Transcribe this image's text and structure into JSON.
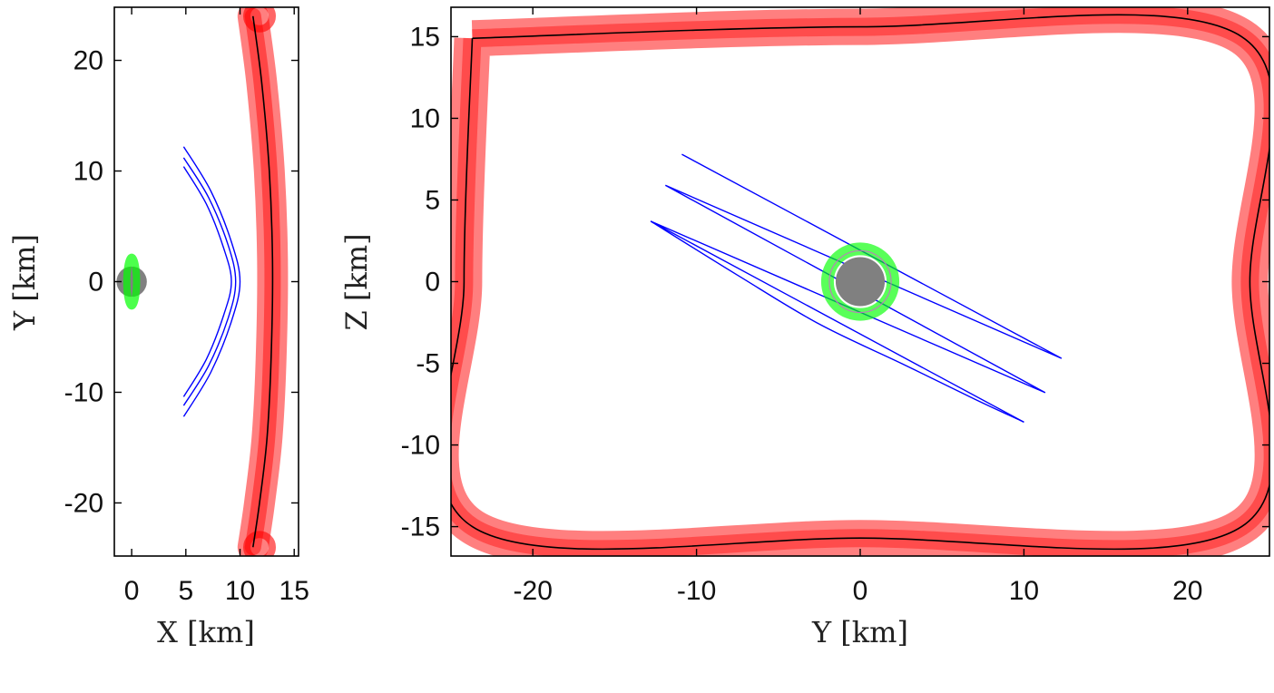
{
  "colors": {
    "boundary": "#ff0000",
    "boundary_core": "#000000",
    "trajectory": "#0000ff",
    "sphere": "#00ff00",
    "body": "#808080"
  },
  "chart_data": [
    {
      "type": "line",
      "name": "xy-view",
      "xlabel": "X [km]",
      "ylabel": "Y [km]",
      "xlim": [
        -1.6,
        15.4
      ],
      "ylim": [
        -24.8,
        24.8
      ],
      "xticks": [
        0,
        5,
        10,
        15
      ],
      "yticks": [
        -20,
        -10,
        0,
        10,
        20
      ],
      "xtick_labels": [
        "0",
        "5",
        "10",
        "15"
      ],
      "ytick_labels": [
        "-20",
        "-10",
        "0",
        "10",
        "20"
      ],
      "grid": false,
      "legend": "none",
      "boundary_curve": [
        [
          11.2,
          24.0
        ],
        [
          12.0,
          18.0
        ],
        [
          12.7,
          10.0
        ],
        [
          13.0,
          2.0
        ],
        [
          12.9,
          -6.0
        ],
        [
          12.5,
          -14.0
        ],
        [
          11.8,
          -20.0
        ],
        [
          11.2,
          -24.0
        ]
      ],
      "boundary_end_markers": [
        [
          11.8,
          24.0
        ],
        [
          11.8,
          -24.0
        ]
      ],
      "trajectory_arcs": [
        [
          [
            4.8,
            12.2
          ],
          [
            7.3,
            8.2
          ],
          [
            9.2,
            3.6
          ],
          [
            10.0,
            0.0
          ],
          [
            9.2,
            -3.6
          ],
          [
            7.3,
            -8.2
          ],
          [
            4.8,
            -12.2
          ]
        ],
        [
          [
            4.8,
            11.2
          ],
          [
            7.1,
            7.6
          ],
          [
            8.9,
            3.3
          ],
          [
            9.6,
            0.0
          ],
          [
            8.9,
            -3.3
          ],
          [
            7.1,
            -7.6
          ],
          [
            4.8,
            -11.2
          ]
        ],
        [
          [
            4.8,
            10.4
          ],
          [
            6.9,
            7.0
          ],
          [
            8.5,
            3.0
          ],
          [
            9.2,
            0.0
          ],
          [
            8.5,
            -3.0
          ],
          [
            6.9,
            -7.0
          ],
          [
            4.8,
            -10.4
          ]
        ]
      ],
      "body": {
        "center": [
          0,
          0
        ],
        "radius_km": 1.4
      },
      "sphere_ring": {
        "center": [
          0,
          0
        ],
        "half_width_km": 0.45,
        "half_height_km": 2.2
      }
    },
    {
      "type": "line",
      "name": "yz-view",
      "xlabel": "Y [km]",
      "ylabel": "Z [km]",
      "xlim": [
        -25.0,
        25.0
      ],
      "ylim": [
        -16.8,
        16.8
      ],
      "xticks": [
        -20,
        -10,
        0,
        10,
        20
      ],
      "yticks": [
        -15,
        -10,
        -5,
        0,
        5,
        10,
        15
      ],
      "xtick_labels": [
        "-20",
        "-10",
        "0",
        "10",
        "20"
      ],
      "ytick_labels": [
        "-15",
        "-10",
        "-5",
        "0",
        "5",
        "10",
        "15"
      ],
      "grid": false,
      "legend": "none",
      "boundary_rect": [
        [
          -23.7,
          14.9
        ],
        [
          0.0,
          15.6
        ],
        [
          23.3,
          15.0
        ],
        [
          23.8,
          0.0
        ],
        [
          23.3,
          -15.0
        ],
        [
          0.0,
          -15.7
        ],
        [
          -23.7,
          -15.0
        ],
        [
          -24.2,
          0.0
        ],
        [
          -23.7,
          14.9
        ]
      ],
      "trajectory_polyline": [
        [
          -10.9,
          7.8
        ],
        [
          12.3,
          -4.7
        ],
        [
          -11.9,
          5.9
        ],
        [
          11.3,
          -6.8
        ],
        [
          -12.8,
          3.7
        ],
        [
          10.0,
          -8.6
        ]
      ],
      "trajectory_outer_curve": [
        [
          -12.8,
          3.7
        ],
        [
          -7.5,
          0.4
        ],
        [
          -2.5,
          -2.6
        ],
        [
          2.5,
          -5.0
        ],
        [
          7.0,
          -7.2
        ],
        [
          10.0,
          -8.6
        ]
      ],
      "body": {
        "center": [
          0,
          0
        ],
        "radius_km": 1.5
      },
      "sphere_ring": {
        "center": [
          0,
          0
        ],
        "radius_km": 2.0
      }
    }
  ]
}
